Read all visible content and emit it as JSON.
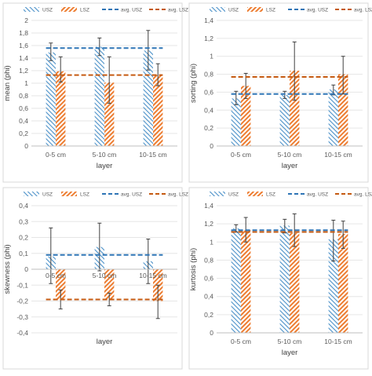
{
  "colors": {
    "usz": "#4a90c8",
    "lsz": "#ed7d31",
    "usz_avg": "#2e75b6",
    "lsz_avg": "#c55a11"
  },
  "chart_data": [
    {
      "type": "bar",
      "categories": [
        "0-5 cm",
        "5-10 cm",
        "10-15 cm"
      ],
      "xlabel": "layer",
      "ylabel": "mean (phi)",
      "ylim": [
        0,
        2
      ],
      "ystep": 0.2,
      "yticks": [
        "0",
        "0,2",
        "0,4",
        "0,6",
        "0,8",
        "1",
        "1,2",
        "1,4",
        "1,6",
        "1,8",
        "2"
      ],
      "legend": [
        "USZ",
        "LSZ",
        "avg. USZ",
        "avg. LSZ"
      ],
      "legend_position": "top",
      "series": [
        {
          "name": "USZ",
          "values": [
            1.49,
            1.58,
            1.52
          ],
          "err_low": [
            1.36,
            1.44,
            1.21
          ],
          "err_high": [
            1.64,
            1.72,
            1.84
          ]
        },
        {
          "name": "LSZ",
          "values": [
            1.19,
            1.01,
            1.13
          ],
          "err_low": [
            1.02,
            0.68,
            0.96
          ],
          "err_high": [
            1.42,
            1.42,
            1.31
          ]
        }
      ],
      "averages": [
        {
          "name": "avg. USZ",
          "value": 1.56
        },
        {
          "name": "avg. LSZ",
          "value": 1.13
        }
      ]
    },
    {
      "type": "bar",
      "categories": [
        "0-5 cm",
        "5-10 cm",
        "10-15 cm"
      ],
      "xlabel": "layer",
      "ylabel": "sorting (phi)",
      "ylim": [
        0,
        1.4
      ],
      "ystep": 0.2,
      "yticks": [
        "0",
        "0,2",
        "0,4",
        "0,6",
        "0,8",
        "1",
        "1,2",
        "1,4"
      ],
      "legend": [
        "USZ",
        "LSZ",
        "avg. USZ",
        "avg. LSZ"
      ],
      "legend_position": "top",
      "series": [
        {
          "name": "USZ",
          "values": [
            0.53,
            0.57,
            0.63
          ],
          "err_low": [
            0.46,
            0.53,
            0.57
          ],
          "err_high": [
            0.61,
            0.61,
            0.68
          ]
        },
        {
          "name": "LSZ",
          "values": [
            0.67,
            0.84,
            0.8
          ],
          "err_low": [
            0.53,
            0.51,
            0.58
          ],
          "err_high": [
            0.81,
            1.16,
            1.0
          ]
        }
      ],
      "averages": [
        {
          "name": "avg. USZ",
          "value": 0.58
        },
        {
          "name": "avg. LSZ",
          "value": 0.77
        }
      ]
    },
    {
      "type": "bar",
      "categories": [
        "0-5 cm",
        "5-10 cm",
        "10-15 cm"
      ],
      "xlabel": "layer",
      "ylabel": "skewness (phi)",
      "ylim": [
        -0.4,
        0.4
      ],
      "ystep": 0.1,
      "yticks": [
        "-0,4",
        "-0,3",
        "-0,2",
        "-0,1",
        "0",
        "0,1",
        "0,2",
        "0,3",
        "0,4"
      ],
      "legend": [
        "USZ",
        "LSZ",
        "avg. USZ",
        "avg. LSZ"
      ],
      "legend_position": "top",
      "series": [
        {
          "name": "USZ",
          "values": [
            0.08,
            0.14,
            0.05
          ],
          "err_low": [
            -0.09,
            -0.01,
            -0.09
          ],
          "err_high": [
            0.26,
            0.29,
            0.19
          ]
        },
        {
          "name": "LSZ",
          "values": [
            -0.19,
            -0.19,
            -0.2
          ],
          "err_low": [
            -0.25,
            -0.23,
            -0.31
          ],
          "err_high": [
            -0.13,
            -0.15,
            -0.1
          ]
        }
      ],
      "averages": [
        {
          "name": "avg. USZ",
          "value": 0.09
        },
        {
          "name": "avg. LSZ",
          "value": -0.19
        }
      ]
    },
    {
      "type": "bar",
      "categories": [
        "0-5 cm",
        "5-10 cm",
        "10-15 cm"
      ],
      "xlabel": "layer",
      "ylabel": "kurtosis (phi)",
      "ylim": [
        0,
        1.4
      ],
      "ystep": 0.2,
      "yticks": [
        "0",
        "0,2",
        "0,4",
        "0,6",
        "0,8",
        "1",
        "1,2",
        "1,4"
      ],
      "legend": [
        "USZ",
        "LSZ",
        "avg. USZ",
        "avg. LSZ"
      ],
      "legend_position": "top",
      "series": [
        {
          "name": "USZ",
          "values": [
            1.15,
            1.18,
            1.03
          ],
          "err_low": [
            1.11,
            1.1,
            0.79
          ],
          "err_high": [
            1.19,
            1.25,
            1.24
          ]
        },
        {
          "name": "LSZ",
          "values": [
            1.13,
            1.1,
            1.09
          ],
          "err_low": [
            1.0,
            0.95,
            0.93
          ],
          "err_high": [
            1.27,
            1.31,
            1.23
          ]
        }
      ],
      "averages": [
        {
          "name": "avg. USZ",
          "value": 1.13
        },
        {
          "name": "avg. LSZ",
          "value": 1.11
        }
      ]
    }
  ]
}
